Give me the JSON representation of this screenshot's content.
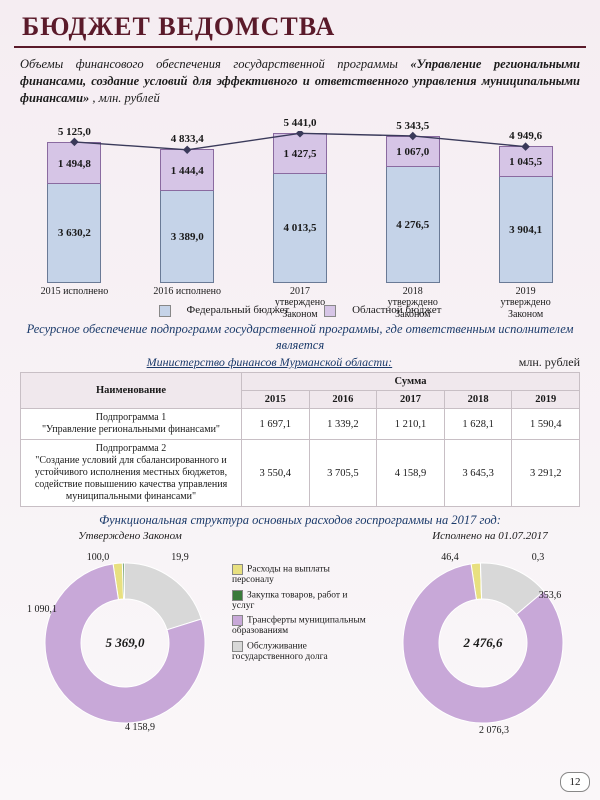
{
  "page": {
    "title": "БЮДЖЕТ ВЕДОМСТВА",
    "number": "12"
  },
  "intro": {
    "pre": "Объемы финансового обеспечения государственной программы ",
    "bold": "«Управление региональными финансами, создание условий для эффективного и ответственного управления муниципальными финансами»",
    "post": ", млн. рублей"
  },
  "barChart": {
    "type": "stacked-bar-with-line",
    "ymax": 5600,
    "categories": [
      "2015 исполнено",
      "2016 исполнено",
      "2017 утверждено Законом",
      "2018 утверждено Законом",
      "2019 утверждено Законом"
    ],
    "bottom": {
      "label": "Федеральный бюджет",
      "color": "#c5d3e8",
      "border": "#7a8aa8",
      "values": [
        "3 630,2",
        "3 389,0",
        "4 013,5",
        "4 276,5",
        "3 904,1"
      ],
      "nums": [
        3630.2,
        3389.0,
        4013.5,
        4276.5,
        3904.1
      ]
    },
    "top": {
      "label": "Областной бюджет",
      "color": "#d6c5e6",
      "border": "#9a7ab8",
      "values": [
        "1 494,8",
        "1 444,4",
        "1 427,5",
        "1 067,0",
        "1 045,5"
      ],
      "nums": [
        1494.8,
        1444.4,
        1427.5,
        1067.0,
        1045.5
      ]
    },
    "totals": {
      "values": [
        "5 125,0",
        "4 833,4",
        "5 441,0",
        "5 343,5",
        "4 949,6"
      ],
      "nums": [
        5125.0,
        4833.4,
        5441.0,
        5343.5,
        4949.6
      ],
      "line_color": "#3a3a5a",
      "marker": "diamond"
    }
  },
  "tableSection": {
    "lead": "Ресурсное обеспечение подпрограмм государственной программы, где ответственным исполнителем является",
    "subtitle": "Министерство финансов Мурманской области:",
    "unit": "млн. рублей",
    "nameHeader": "Наименование",
    "sumHeader": "Сумма",
    "years": [
      "2015",
      "2016",
      "2017",
      "2018",
      "2019"
    ],
    "rows": [
      {
        "name": "Подпрограмма 1\n\"Управление региональными финансами\"",
        "vals": [
          "1 697,1",
          "1 339,2",
          "1 210,1",
          "1 628,1",
          "1 590,4"
        ]
      },
      {
        "name": "Подпрограмма 2\n\"Создание условий для сбалансированного и устойчивого исполнения местных бюджетов, содействие повышению качества управления муниципальными финансами\"",
        "vals": [
          "3 550,4",
          "3 705,5",
          "4 158,9",
          "3 645,3",
          "3 291,2"
        ]
      }
    ]
  },
  "funcHead": "Функциональная структура основных расходов госпрограммы на 2017 год:",
  "donutLegend": [
    {
      "label": "Расходы на выплаты персоналу",
      "color": "#e8e080"
    },
    {
      "label": "Закупка товаров, работ и услуг",
      "color": "#3a7a3a"
    },
    {
      "label": "Трансферты муниципальным образованиям",
      "color": "#c8a8d8"
    },
    {
      "label": "Обслуживание государственного долга",
      "color": "#d8d8d8"
    }
  ],
  "donut1": {
    "title": "Утверждено Законом",
    "centerValue": "5 369,0",
    "slices": [
      {
        "v": 100.0,
        "label": "100,0",
        "color": "#e8e080"
      },
      {
        "v": 19.9,
        "label": "19,9",
        "color": "#3a7a3a"
      },
      {
        "v": 1090.1,
        "label": "1 090,1",
        "color": "#d8d8d8"
      },
      {
        "v": 4158.9,
        "label": "4 158,9",
        "color": "#c8a8d8"
      }
    ]
  },
  "donut2": {
    "title": "Исполнено на 01.07.2017",
    "centerValue": "2 476,6",
    "slices": [
      {
        "v": 46.4,
        "label": "46,4",
        "color": "#e8e080"
      },
      {
        "v": 0.3,
        "label": "0,3",
        "color": "#3a7a3a"
      },
      {
        "v": 353.6,
        "label": "353,6",
        "color": "#d8d8d8"
      },
      {
        "v": 2076.3,
        "label": "2 076,3",
        "color": "#c8a8d8"
      }
    ]
  },
  "style": {
    "title_color": "#5a1a2a",
    "background_gradient": [
      "#f5edf2",
      "#faf7f9"
    ],
    "donut_inner_ratio": 0.55
  }
}
